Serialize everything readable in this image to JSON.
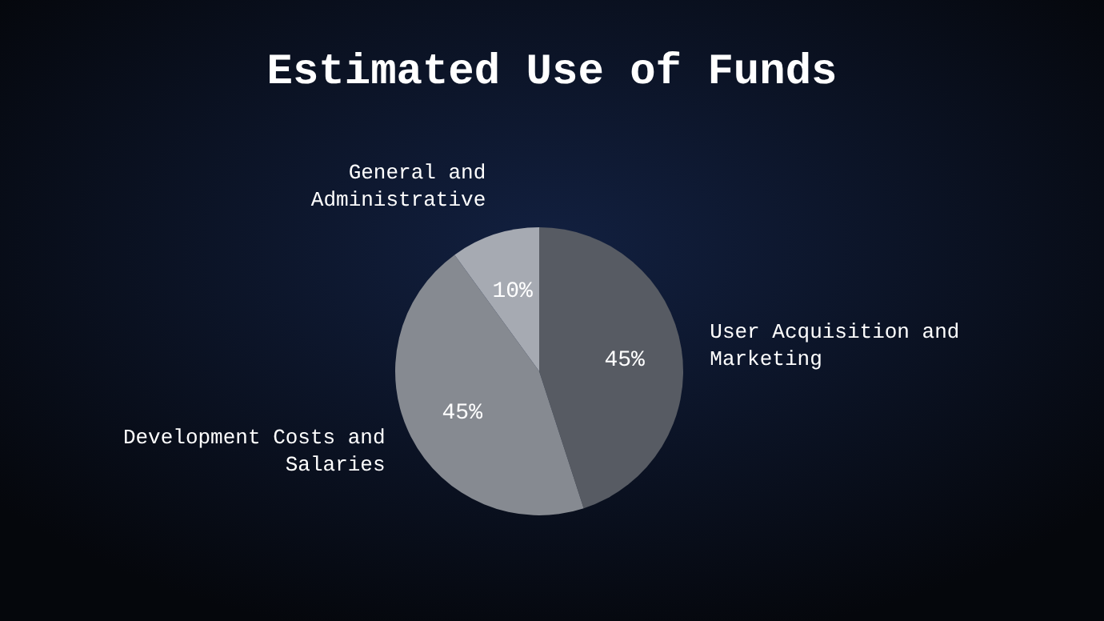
{
  "chart_data": {
    "type": "pie",
    "title": "Estimated Use of Funds",
    "categories": [
      "User Acquisition and Marketing",
      "Development Costs and Salaries",
      "General and Administrative"
    ],
    "values": [
      45,
      45,
      10
    ],
    "value_labels": [
      "45%",
      "45%",
      "10%"
    ],
    "colors": [
      "#575b63",
      "#868a91",
      "#a6aab2"
    ]
  }
}
